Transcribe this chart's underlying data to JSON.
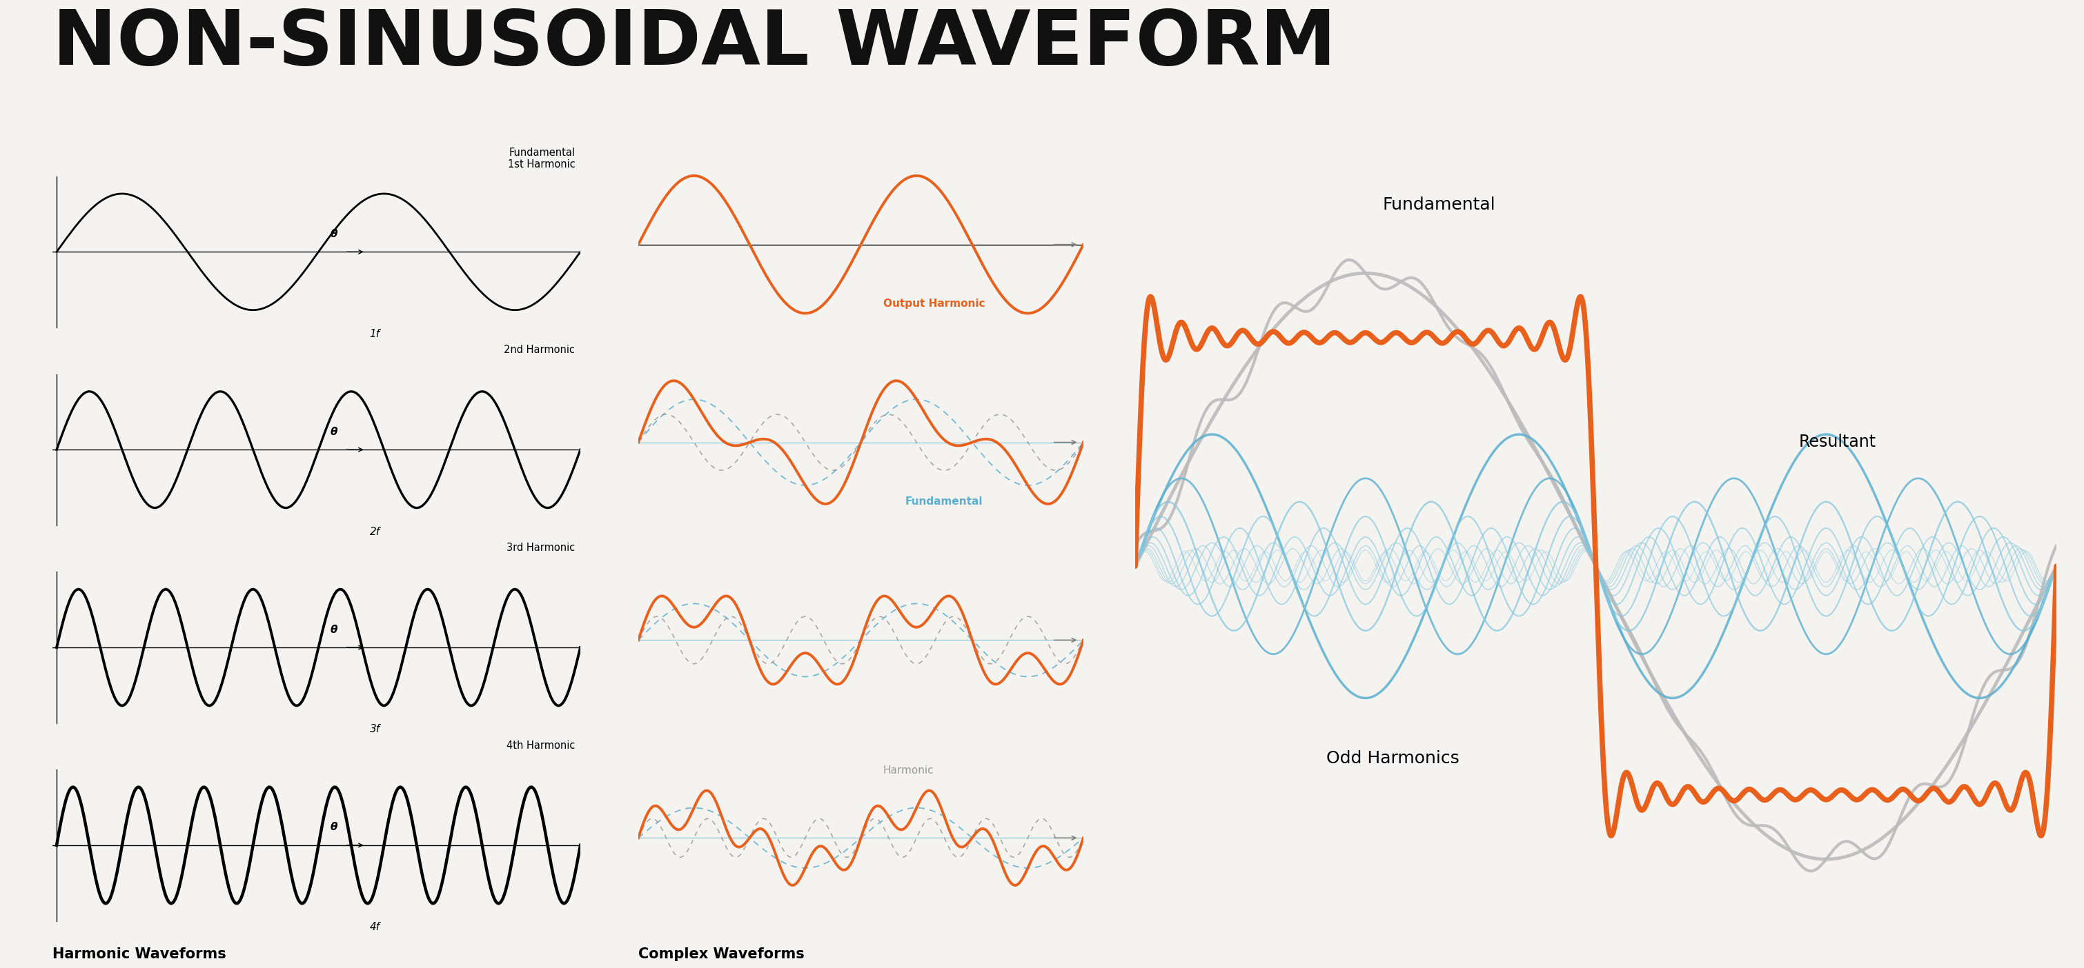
{
  "title": "NON-SINUSOIDAL WAVEFORM",
  "bg_color": "#f5f3ef",
  "title_color": "#111111",
  "harmonic_labels": [
    "Fundamental\n1st Harmonic",
    "2nd Harmonic",
    "3rd Harmonic",
    "4th Harmonic"
  ],
  "harmonic_freq_labels": [
    "1f",
    "2f",
    "3f",
    "4f"
  ],
  "harmonic_waveforms_label": "Harmonic Waveforms",
  "complex_waveforms_label": "Complex Waveforms",
  "orange_color": "#E8601C",
  "blue_color": "#5AAFD0",
  "blue_light_color": "#85C8E0",
  "gray_color": "#BBBBBB",
  "output_label": "Output Harmonic",
  "fundamental_label": "Fundamental",
  "harmonic_label": "Harmonic",
  "resultant_label": "Resultant",
  "odd_harmonics_label": "Odd Harmonics",
  "right_fundamental_label": "Fundamental"
}
